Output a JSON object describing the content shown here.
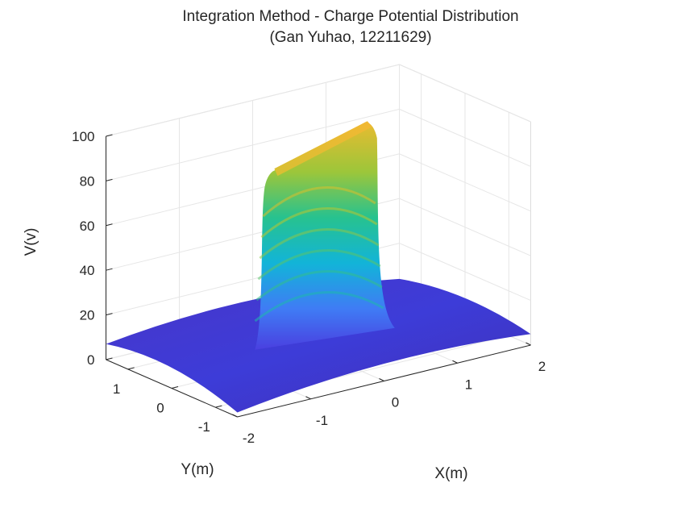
{
  "chart_data": {
    "type": "surface",
    "title": "Integration Method - Charge Potential Distribution",
    "subtitle": "(Gan Yuhao, 12211629)",
    "xlabel": "X(m)",
    "ylabel": "Y(m)",
    "zlabel": "V(v)",
    "xlim": [
      -2,
      2
    ],
    "ylim": [
      -1.5,
      1.5
    ],
    "zlim": [
      0,
      100
    ],
    "x_ticks": [
      {
        "value": -2,
        "label": "-2"
      },
      {
        "value": -1,
        "label": "-1"
      },
      {
        "value": 0,
        "label": "0"
      },
      {
        "value": 1,
        "label": "1"
      },
      {
        "value": 2,
        "label": "2"
      }
    ],
    "y_ticks": [
      {
        "value": -1,
        "label": "-1"
      },
      {
        "value": 0,
        "label": "0"
      },
      {
        "value": 1,
        "label": "1"
      }
    ],
    "z_ticks": [
      {
        "value": 0,
        "label": "0"
      },
      {
        "value": 20,
        "label": "20"
      },
      {
        "value": 40,
        "label": "40"
      },
      {
        "value": 60,
        "label": "60"
      },
      {
        "value": 80,
        "label": "80"
      },
      {
        "value": 100,
        "label": "100"
      }
    ],
    "surface": {
      "plateau_value": 100,
      "plateau_x_range": [
        -0.7,
        0.7
      ],
      "plateau_y_range": [
        -0.02,
        0.02
      ],
      "edge_value_corner": 6,
      "colormap": "parula"
    },
    "grid": true,
    "colors": {
      "low": "#3e26a8",
      "mid": "#13beb8",
      "high": "#f9bd35"
    }
  }
}
